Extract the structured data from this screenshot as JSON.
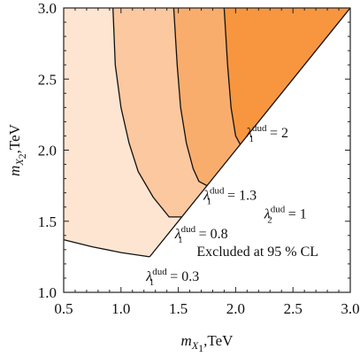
{
  "chart_data": {
    "type": "area",
    "title": "",
    "xlabel": {
      "var": "m",
      "sub": "X",
      "subsub": "1",
      "unit": ",TeV"
    },
    "ylabel": {
      "var": "m",
      "sub": "X",
      "subsub": "2",
      "unit": ",TeV"
    },
    "xlim": [
      0.5,
      3.0
    ],
    "ylim": [
      1.0,
      3.0
    ],
    "xticks": [
      "0.5",
      "1.0",
      "1.5",
      "2.0",
      "2.5",
      "3.0"
    ],
    "yticks": [
      "1.0",
      "1.5",
      "2.0",
      "2.5",
      "3.0"
    ],
    "grid": false,
    "colors": [
      "#fde5d2",
      "#fbc8a0",
      "#f9ad6d",
      "#f7963f"
    ],
    "excluded_boundary": [
      [
        1.25,
        1.25
      ],
      [
        3.0,
        3.0
      ]
    ],
    "regions": [
      {
        "label": "λ1dud = 0.3",
        "boundary": [
          [
            0.5,
            1.37
          ],
          [
            0.75,
            1.32
          ],
          [
            1.0,
            1.28
          ],
          [
            1.25,
            1.25
          ]
        ]
      },
      {
        "label": "λ1dud = 0.8",
        "boundary": [
          [
            0.93,
            3.0
          ],
          [
            0.95,
            2.6
          ],
          [
            1.0,
            2.3
          ],
          [
            1.07,
            2.05
          ],
          [
            1.15,
            1.85
          ],
          [
            1.28,
            1.67
          ],
          [
            1.42,
            1.53
          ],
          [
            1.53,
            1.53
          ]
        ]
      },
      {
        "label": "λ1dud = 1.3",
        "boundary": [
          [
            1.46,
            3.0
          ],
          [
            1.49,
            2.6
          ],
          [
            1.52,
            2.3
          ],
          [
            1.57,
            2.05
          ],
          [
            1.63,
            1.87
          ],
          [
            1.68,
            1.78
          ],
          [
            1.75,
            1.75
          ]
        ]
      },
      {
        "label": "λ1dud = 2",
        "boundary": [
          [
            1.9,
            3.0
          ],
          [
            1.93,
            2.6
          ],
          [
            1.96,
            2.3
          ],
          [
            2.0,
            2.1
          ],
          [
            2.04,
            2.04
          ]
        ]
      }
    ],
    "annotations": [
      {
        "sym": "λ",
        "sub": "1",
        "sup": "dud",
        "text": " = 2",
        "x": 2.09,
        "y": 2.09
      },
      {
        "sym": "λ",
        "sub": "1",
        "sup": "dud",
        "text": " = 1.3",
        "x": 1.72,
        "y": 1.65
      },
      {
        "sym": "λ",
        "sub": "2",
        "sup": "dud",
        "text": " = 1",
        "x": 2.25,
        "y": 1.52
      },
      {
        "sym": "λ",
        "sub": "1",
        "sup": "dud",
        "text": " = 0.8",
        "x": 1.47,
        "y": 1.38
      },
      {
        "plain": "Excluded at 95 % CL",
        "x": 1.66,
        "y": 1.255
      },
      {
        "sym": "λ",
        "sub": "1",
        "sup": "dud",
        "text": " = 0.3",
        "x": 1.22,
        "y": 1.08
      }
    ]
  }
}
